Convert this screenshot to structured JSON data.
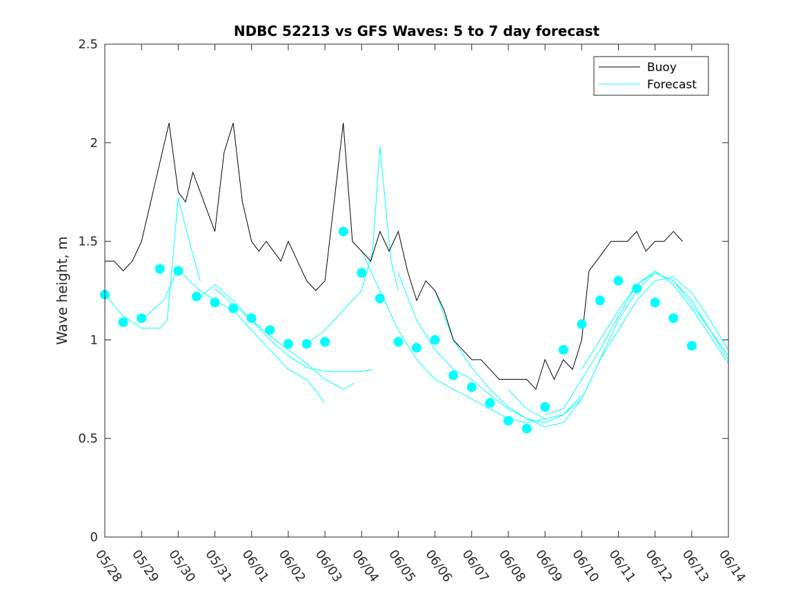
{
  "chart_data": {
    "type": "line",
    "title": "NDBC 52213 vs GFS Waves: 5 to 7 day forecast",
    "xlabel": "",
    "ylabel": "Wave height, m",
    "xlim": [
      "05/28",
      "06/14"
    ],
    "ylim": [
      0,
      2.5
    ],
    "yticks": [
      0,
      0.5,
      1,
      1.5,
      2,
      2.5
    ],
    "ytick_labels": [
      "0",
      "0.5",
      "1",
      "1.5",
      "2",
      "2.5"
    ],
    "xtick_labels": [
      "05/28",
      "05/29",
      "05/30",
      "05/31",
      "06/01",
      "06/02",
      "06/03",
      "06/04",
      "06/05",
      "06/06",
      "06/07",
      "06/08",
      "06/09",
      "06/10",
      "06/11",
      "06/12",
      "06/13",
      "06/14"
    ],
    "x_unit": "day",
    "grid": false,
    "legend_position": "top-right",
    "colors": {
      "buoy": "#000000",
      "forecast": "#00ffff"
    },
    "legend": [
      {
        "label": "Buoy",
        "color": "#000000"
      },
      {
        "label": "Forecast",
        "color": "#00ffff"
      }
    ],
    "buoy": {
      "name": "Buoy",
      "x": [
        0.0,
        0.25,
        0.5,
        0.75,
        1.0,
        1.25,
        1.5,
        1.75,
        2.0,
        2.2,
        2.4,
        2.6,
        2.8,
        3.0,
        3.25,
        3.5,
        3.75,
        4.0,
        4.2,
        4.4,
        4.6,
        4.8,
        5.0,
        5.25,
        5.5,
        5.75,
        6.0,
        6.25,
        6.5,
        6.75,
        7.0,
        7.25,
        7.5,
        7.75,
        8.0,
        8.25,
        8.5,
        8.75,
        9.0,
        9.25,
        9.5,
        9.75,
        10.0,
        10.25,
        10.5,
        10.75,
        11.0,
        11.25,
        11.5,
        11.75,
        12.0,
        12.25,
        12.5,
        12.75,
        13.0,
        13.2,
        13.4,
        13.6,
        13.8,
        14.0,
        14.25,
        14.5,
        14.75,
        15.0,
        15.25,
        15.5,
        15.75,
        16.0,
        16.25,
        16.5,
        16.75,
        17.0
      ],
      "y": [
        1.4,
        1.4,
        1.35,
        1.4,
        1.5,
        1.7,
        1.9,
        2.1,
        1.75,
        1.7,
        1.85,
        1.75,
        1.65,
        1.55,
        1.95,
        2.1,
        1.7,
        1.5,
        1.45,
        1.5,
        1.45,
        1.4,
        1.5,
        1.4,
        1.3,
        1.25,
        1.3,
        1.7,
        2.1,
        1.5,
        1.45,
        1.4,
        1.55,
        1.45,
        1.55,
        1.35,
        1.2,
        1.3,
        1.25,
        1.15,
        1.0,
        0.95,
        0.9,
        0.9,
        0.85,
        0.8,
        0.8,
        0.8,
        0.8,
        0.75,
        0.9,
        0.8,
        0.9,
        0.85,
        1.0,
        1.35,
        1.4,
        1.45,
        1.5,
        1.5,
        1.5,
        1.55,
        1.45,
        1.5,
        1.5,
        1.55,
        1.5,
        null,
        null,
        null,
        null,
        null
      ]
    },
    "forecast_markers": {
      "name": "Forecast",
      "x": [
        0.0,
        0.5,
        1.0,
        1.5,
        2.0,
        2.5,
        3.0,
        3.5,
        4.0,
        4.5,
        5.0,
        5.5,
        6.0,
        6.5,
        7.0,
        7.5,
        8.0,
        8.5,
        9.0,
        9.5,
        10.0,
        10.5,
        11.0,
        11.5,
        12.0,
        12.5,
        13.0,
        13.5,
        14.0,
        14.5,
        15.0,
        15.5,
        16.0,
        16.5
      ],
      "y": [
        1.23,
        1.09,
        1.11,
        1.36,
        1.35,
        1.22,
        1.19,
        1.16,
        1.11,
        1.05,
        0.98,
        0.98,
        0.99,
        1.55,
        1.34,
        1.21,
        0.99,
        0.96,
        1.0,
        0.82,
        0.76,
        0.68,
        0.59,
        0.55,
        0.66,
        0.95,
        1.08,
        1.2,
        1.3,
        1.26,
        1.19,
        1.11,
        0.97,
        null
      ]
    },
    "forecast_runs": [
      {
        "x": [
          0.0,
          0.5,
          1.0,
          1.5,
          1.7,
          2.0,
          2.3,
          2.6
        ],
        "y": [
          1.23,
          1.12,
          1.06,
          1.06,
          1.1,
          1.72,
          1.5,
          1.3
        ]
      },
      {
        "x": [
          1.0,
          1.3,
          1.6,
          2.0,
          2.3,
          2.6,
          3.0,
          3.5,
          4.0,
          4.5,
          5.0,
          5.5,
          6.0
        ],
        "y": [
          1.1,
          1.15,
          1.2,
          1.36,
          1.3,
          1.25,
          1.2,
          1.15,
          1.05,
          0.95,
          0.85,
          0.8,
          0.68
        ]
      },
      {
        "x": [
          2.5,
          3.0,
          3.5,
          4.0,
          4.5,
          5.0,
          5.5,
          6.0,
          6.5,
          6.8
        ],
        "y": [
          1.2,
          1.28,
          1.2,
          1.1,
          1.02,
          0.95,
          0.88,
          0.8,
          0.75,
          0.78
        ]
      },
      {
        "x": [
          3.0,
          3.5,
          4.0,
          4.5,
          5.0,
          5.5,
          6.0,
          6.5,
          7.0,
          7.3
        ],
        "y": [
          1.26,
          1.18,
          1.1,
          1.0,
          0.92,
          0.86,
          0.84,
          0.84,
          0.84,
          0.85
        ]
      },
      {
        "x": [
          5.5,
          6.0,
          6.5,
          7.0,
          7.3,
          7.5,
          7.8,
          8.0
        ],
        "y": [
          0.98,
          1.05,
          1.15,
          1.25,
          1.45,
          1.98,
          1.4,
          1.25
        ]
      },
      {
        "x": [
          7.0,
          7.5,
          8.0,
          8.5,
          9.0,
          9.5,
          10.0,
          10.5,
          11.0,
          11.5,
          12.0
        ],
        "y": [
          1.45,
          1.25,
          1.05,
          0.9,
          0.8,
          0.75,
          0.7,
          0.65,
          0.6,
          0.58,
          0.6
        ]
      },
      {
        "x": [
          8.0,
          8.5,
          9.0,
          9.5,
          10.0,
          10.5,
          11.0,
          11.5,
          12.0,
          12.5,
          13.0
        ],
        "y": [
          1.34,
          1.1,
          0.95,
          0.85,
          0.8,
          0.72,
          0.65,
          0.6,
          0.58,
          0.62,
          0.72
        ]
      },
      {
        "x": [
          9.0,
          9.5,
          10.0,
          10.5,
          11.0,
          11.5,
          12.0,
          12.5,
          13.0,
          13.5,
          14.0,
          14.5,
          15.0,
          15.5,
          16.0,
          16.5,
          17.0
        ],
        "y": [
          1.25,
          1.0,
          0.86,
          0.75,
          0.66,
          0.6,
          0.56,
          0.58,
          0.7,
          0.9,
          1.05,
          1.2,
          1.3,
          1.32,
          1.24,
          1.1,
          0.95
        ]
      },
      {
        "x": [
          11.0,
          11.5,
          12.0,
          12.5,
          13.0,
          13.5,
          14.0,
          14.5,
          15.0,
          15.5,
          16.0,
          16.5,
          17.0
        ],
        "y": [
          0.75,
          0.65,
          0.6,
          0.62,
          0.7,
          0.9,
          1.1,
          1.25,
          1.34,
          1.3,
          1.2,
          1.05,
          0.9
        ]
      },
      {
        "x": [
          12.0,
          12.5,
          13.0,
          13.5,
          14.0,
          14.5,
          15.0,
          15.5,
          16.0,
          16.5,
          17.0
        ],
        "y": [
          0.62,
          0.65,
          0.8,
          0.95,
          1.12,
          1.28,
          1.35,
          1.28,
          1.16,
          1.02,
          0.88
        ]
      },
      {
        "x": [
          13.0,
          13.5,
          14.0,
          14.5,
          15.0,
          15.5,
          16.0,
          16.5,
          17.0
        ],
        "y": [
          0.85,
          1.0,
          1.15,
          1.28,
          1.34,
          1.3,
          1.18,
          1.05,
          0.92
        ]
      }
    ]
  }
}
